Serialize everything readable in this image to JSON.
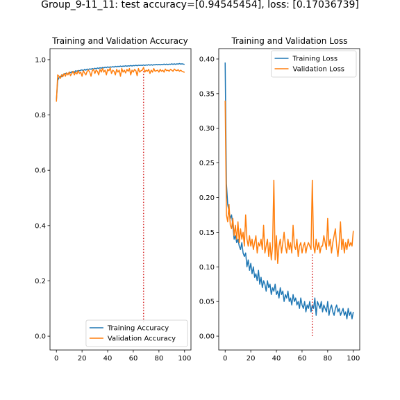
{
  "figure": {
    "suptitle": "Group_9-11_11: test accuracy=[0.94545454], loss: [0.17036739]"
  },
  "colors": {
    "training": "#1f77b4",
    "validation": "#ff7f0e",
    "marker_line": "#d62728"
  },
  "chart_data": [
    {
      "type": "line",
      "title": "Training and Validation Accuracy",
      "xlabel": "",
      "ylabel": "",
      "xlim": [
        -5,
        105
      ],
      "ylim": [
        -0.05,
        1.04
      ],
      "xticks": [
        0,
        20,
        40,
        60,
        80,
        100
      ],
      "yticks": [
        0.0,
        0.2,
        0.4,
        0.6,
        0.8,
        1.0
      ],
      "xtick_labels": [
        "0",
        "20",
        "40",
        "60",
        "80",
        "100"
      ],
      "ytick_labels": [
        "0.0",
        "0.2",
        "0.4",
        "0.6",
        "0.8",
        "1.0"
      ],
      "grid": false,
      "legend_position": "lower-right",
      "series": [
        {
          "name": "Training Accuracy",
          "values": [
            0.855,
            0.925,
            0.935,
            0.94,
            0.938,
            0.945,
            0.948,
            0.95,
            0.952,
            0.947,
            0.955,
            0.953,
            0.956,
            0.958,
            0.954,
            0.96,
            0.958,
            0.961,
            0.96,
            0.962,
            0.963,
            0.96,
            0.965,
            0.962,
            0.966,
            0.964,
            0.967,
            0.965,
            0.968,
            0.966,
            0.969,
            0.967,
            0.97,
            0.968,
            0.971,
            0.969,
            0.972,
            0.97,
            0.973,
            0.971,
            0.974,
            0.972,
            0.974,
            0.973,
            0.975,
            0.973,
            0.976,
            0.974,
            0.976,
            0.975,
            0.977,
            0.975,
            0.977,
            0.976,
            0.978,
            0.976,
            0.978,
            0.977,
            0.979,
            0.977,
            0.979,
            0.978,
            0.98,
            0.978,
            0.98,
            0.979,
            0.98,
            0.979,
            0.981,
            0.979,
            0.981,
            0.98,
            0.982,
            0.98,
            0.982,
            0.98,
            0.982,
            0.981,
            0.983,
            0.981,
            0.983,
            0.981,
            0.983,
            0.982,
            0.984,
            0.982,
            0.984,
            0.982,
            0.984,
            0.983,
            0.985,
            0.983,
            0.985,
            0.983,
            0.985,
            0.984,
            0.986,
            0.984,
            0.985,
            0.984,
            0.983
          ]
        },
        {
          "name": "Validation Accuracy",
          "values": [
            0.848,
            0.945,
            0.94,
            0.932,
            0.945,
            0.938,
            0.95,
            0.94,
            0.952,
            0.945,
            0.955,
            0.942,
            0.95,
            0.958,
            0.945,
            0.955,
            0.948,
            0.96,
            0.95,
            0.955,
            0.94,
            0.96,
            0.952,
            0.945,
            0.958,
            0.962,
            0.955,
            0.94,
            0.96,
            0.965,
            0.95,
            0.962,
            0.958,
            0.945,
            0.965,
            0.955,
            0.968,
            0.955,
            0.962,
            0.945,
            0.965,
            0.96,
            0.97,
            0.95,
            0.962,
            0.958,
            0.945,
            0.965,
            0.955,
            0.962,
            0.94,
            0.968,
            0.955,
            0.962,
            0.952,
            0.965,
            0.958,
            0.968,
            0.945,
            0.962,
            0.955,
            0.965,
            0.96,
            0.942,
            0.968,
            0.955,
            0.96,
            0.962,
            0.972,
            0.955,
            0.962,
            0.958,
            0.965,
            0.95,
            0.962,
            0.955,
            0.968,
            0.958,
            0.96,
            0.962,
            0.955,
            0.965,
            0.958,
            0.962,
            0.955,
            0.966,
            0.96,
            0.962,
            0.958,
            0.965,
            0.962,
            0.958,
            0.966,
            0.962,
            0.96,
            0.964,
            0.958,
            0.962,
            0.958,
            0.956,
            0.954
          ]
        }
      ],
      "vline": {
        "x": 68,
        "y_from": 0.05,
        "y_to": 0.96
      }
    },
    {
      "type": "line",
      "title": "Training and Validation Loss",
      "xlabel": "",
      "ylabel": "",
      "xlim": [
        -5,
        105
      ],
      "ylim": [
        -0.02,
        0.415
      ],
      "xticks": [
        0,
        20,
        40,
        60,
        80,
        100
      ],
      "yticks": [
        0.0,
        0.05,
        0.1,
        0.15,
        0.2,
        0.25,
        0.3,
        0.35,
        0.4
      ],
      "xtick_labels": [
        "0",
        "20",
        "40",
        "60",
        "80",
        "100"
      ],
      "ytick_labels": [
        "0.00",
        "0.05",
        "0.10",
        "0.15",
        "0.20",
        "0.25",
        "0.30",
        "0.35",
        "0.40"
      ],
      "grid": false,
      "legend_position": "upper-right",
      "series": [
        {
          "name": "Training Loss",
          "values": [
            0.395,
            0.22,
            0.19,
            0.18,
            0.17,
            0.175,
            0.16,
            0.14,
            0.145,
            0.135,
            0.14,
            0.13,
            0.125,
            0.135,
            0.12,
            0.115,
            0.12,
            0.1,
            0.11,
            0.095,
            0.105,
            0.09,
            0.1,
            0.085,
            0.09,
            0.08,
            0.095,
            0.075,
            0.085,
            0.07,
            0.08,
            0.075,
            0.065,
            0.08,
            0.07,
            0.075,
            0.06,
            0.07,
            0.065,
            0.075,
            0.06,
            0.065,
            0.055,
            0.07,
            0.06,
            0.065,
            0.05,
            0.06,
            0.055,
            0.065,
            0.05,
            0.055,
            0.045,
            0.06,
            0.05,
            0.055,
            0.045,
            0.05,
            0.04,
            0.055,
            0.045,
            0.04,
            0.05,
            0.035,
            0.045,
            0.04,
            0.05,
            0.035,
            0.045,
            0.04,
            0.055,
            0.03,
            0.05,
            0.045,
            0.04,
            0.05,
            0.035,
            0.045,
            0.04,
            0.035,
            0.05,
            0.03,
            0.04,
            0.045,
            0.035,
            0.03,
            0.04,
            0.045,
            0.035,
            0.04,
            0.03,
            0.035,
            0.04,
            0.03,
            0.035,
            0.025,
            0.04,
            0.03,
            0.035,
            0.025,
            0.035
          ]
        },
        {
          "name": "Validation Loss",
          "values": [
            0.34,
            0.175,
            0.165,
            0.19,
            0.16,
            0.155,
            0.17,
            0.145,
            0.16,
            0.14,
            0.165,
            0.135,
            0.155,
            0.14,
            0.15,
            0.13,
            0.175,
            0.14,
            0.13,
            0.145,
            0.13,
            0.14,
            0.125,
            0.135,
            0.145,
            0.12,
            0.135,
            0.13,
            0.14,
            0.125,
            0.16,
            0.12,
            0.13,
            0.14,
            0.115,
            0.135,
            0.11,
            0.13,
            0.225,
            0.11,
            0.145,
            0.105,
            0.13,
            0.14,
            0.12,
            0.135,
            0.15,
            0.13,
            0.12,
            0.14,
            0.125,
            0.135,
            0.12,
            0.16,
            0.13,
            0.125,
            0.14,
            0.115,
            0.13,
            0.135,
            0.12,
            0.13,
            0.135,
            0.12,
            0.13,
            0.135,
            0.13,
            0.125,
            0.225,
            0.13,
            0.12,
            0.14,
            0.125,
            0.135,
            0.12,
            0.13,
            0.13,
            0.145,
            0.135,
            0.125,
            0.17,
            0.13,
            0.14,
            0.12,
            0.135,
            0.145,
            0.155,
            0.13,
            0.115,
            0.135,
            0.165,
            0.125,
            0.14,
            0.12,
            0.135,
            0.125,
            0.14,
            0.13,
            0.135,
            0.13,
            0.152
          ]
        }
      ],
      "vline": {
        "x": 68,
        "y_from": 0.0,
        "y_to": 0.12
      }
    }
  ]
}
